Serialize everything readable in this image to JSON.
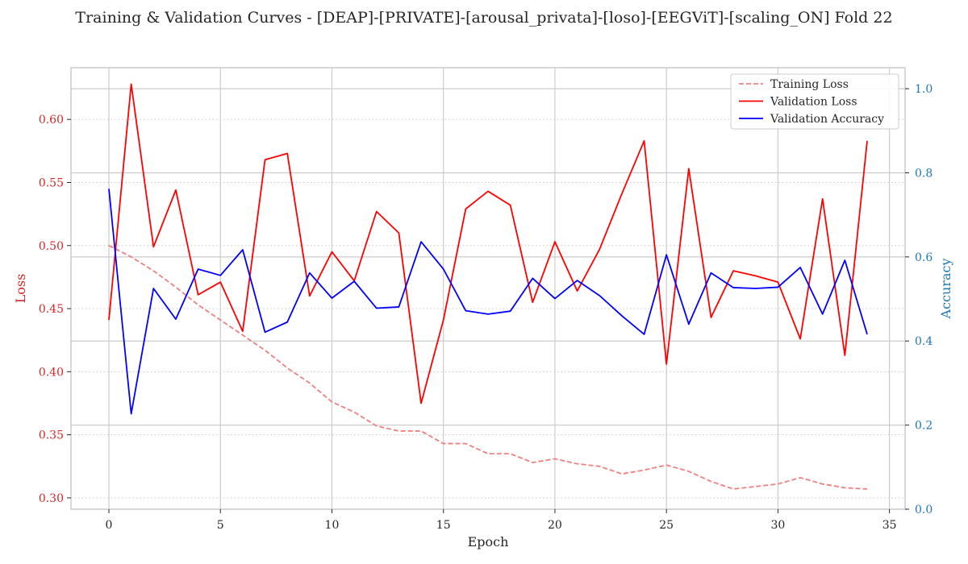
{
  "chart_data": {
    "type": "line",
    "title": "Training & Validation Curves - [DEAP]-[PRIVATE]-[arousal_privata]-[loso]-[EEGViT]-[scaling_ON] Fold 22",
    "xlabel": "Epoch",
    "ylabel_left": "Loss",
    "ylabel_right": "Accuracy",
    "xlim": [
      -1.7,
      35.7
    ],
    "ylim_left": [
      0.291,
      0.641
    ],
    "ylim_right": [
      0.0,
      1.05
    ],
    "x_ticks": [
      0,
      5,
      10,
      15,
      20,
      25,
      30,
      35
    ],
    "y_left_ticks": [
      0.3,
      0.35,
      0.4,
      0.45,
      0.5,
      0.55,
      0.6
    ],
    "y_right_ticks": [
      0.0,
      0.2,
      0.4,
      0.6,
      0.8,
      1.0
    ],
    "grid": true,
    "legend_position": "top-right",
    "colors": {
      "loss_axis": "#d62728",
      "accuracy_axis": "#1f77b4",
      "axis_text": "#262626",
      "spine": "#cccccc"
    },
    "x": [
      0,
      1,
      2,
      3,
      4,
      5,
      6,
      7,
      8,
      9,
      10,
      11,
      12,
      13,
      14,
      15,
      16,
      17,
      18,
      19,
      20,
      21,
      22,
      23,
      24,
      25,
      26,
      27,
      28,
      29,
      30,
      31,
      32,
      33,
      34
    ],
    "series": [
      {
        "name": "Training Loss",
        "axis": "left",
        "color": "#f08080",
        "dash": true,
        "values": [
          0.5,
          0.491,
          0.48,
          0.467,
          0.453,
          0.441,
          0.429,
          0.417,
          0.403,
          0.391,
          0.376,
          0.368,
          0.357,
          0.353,
          0.353,
          0.343,
          0.343,
          0.335,
          0.335,
          0.328,
          0.331,
          0.327,
          0.325,
          0.319,
          0.322,
          0.326,
          0.321,
          0.313,
          0.307,
          0.309,
          0.311,
          0.316,
          0.311,
          0.308,
          0.307
        ]
      },
      {
        "name": "Validation Loss",
        "axis": "left",
        "color": "#ff0000",
        "dash": false,
        "values": [
          0.441,
          0.628,
          0.499,
          0.544,
          0.461,
          0.471,
          0.432,
          0.568,
          0.573,
          0.46,
          0.495,
          0.472,
          0.527,
          0.51,
          0.375,
          0.441,
          0.529,
          0.543,
          0.532,
          0.455,
          0.503,
          0.464,
          0.497,
          0.541,
          0.583,
          0.406,
          0.561,
          0.443,
          0.48,
          0.476,
          0.471,
          0.426,
          0.537,
          0.413,
          0.583
        ]
      },
      {
        "name": "Validation Accuracy",
        "axis": "right",
        "color": "#0000ff",
        "dash": false,
        "values": [
          0.762,
          0.227,
          0.525,
          0.452,
          0.571,
          0.556,
          0.617,
          0.421,
          0.445,
          0.562,
          0.502,
          0.542,
          0.478,
          0.481,
          0.636,
          0.571,
          0.472,
          0.464,
          0.471,
          0.549,
          0.501,
          0.544,
          0.508,
          0.46,
          0.416,
          0.605,
          0.44,
          0.562,
          0.527,
          0.525,
          0.528,
          0.575,
          0.464,
          0.592,
          0.416
        ]
      }
    ]
  }
}
